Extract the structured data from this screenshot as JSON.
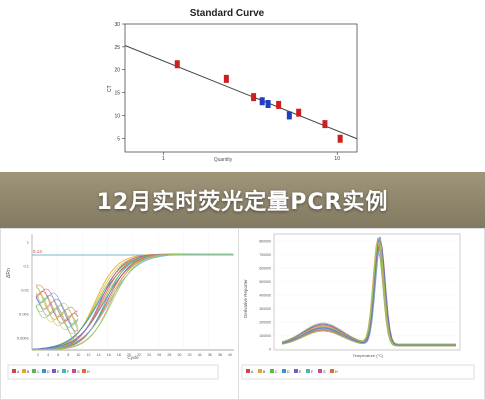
{
  "banner": {
    "title": "12月实时荧光定量PCR实例"
  },
  "colors": {
    "banner_bg": "#8a7f5f",
    "regression_line": "#444444",
    "red_marker": "#cc1f1f",
    "blue_marker": "#1f3fbf",
    "threshold_line": "#4aa3b8"
  },
  "chart_data": [
    {
      "type": "scatter",
      "title": "Standard Curve",
      "xlabel": "Quantity",
      "ylabel": "CT",
      "xscale": "log",
      "xlim": [
        0.6,
        13
      ],
      "ylim": [
        2,
        30
      ],
      "yticks": [
        "5",
        "10",
        "15",
        "20",
        "25",
        "30"
      ],
      "xticks": [
        "1",
        "10"
      ],
      "grid": false,
      "regression": {
        "x": [
          0.6,
          13
        ],
        "y": [
          25.3,
          4.9
        ]
      },
      "series": [
        {
          "color": "red",
          "x": [
            1.2,
            2.3,
            3.3,
            4.6,
            6.0,
            8.5,
            10.4
          ],
          "y": [
            21.2,
            18.0,
            14.0,
            12.3,
            10.6,
            8.1,
            4.9
          ]
        },
        {
          "color": "blue",
          "x": [
            3.7,
            4.0,
            5.3
          ],
          "y": [
            13.1,
            12.5,
            10.0
          ]
        }
      ]
    },
    {
      "type": "line",
      "title": "",
      "xlabel": "Cycle",
      "ylabel": "ΔRn",
      "threshold_label": "0.13",
      "yticks": [
        "1",
        "0.1",
        "0.01",
        "0.001",
        "0.0001"
      ],
      "xticks": [
        "2",
        "4",
        "6",
        "8",
        "10",
        "12",
        "14",
        "16",
        "18",
        "20",
        "22",
        "24",
        "26",
        "28",
        "30",
        "32",
        "34",
        "36",
        "38",
        "40"
      ],
      "curve_count": 14,
      "legend": [
        "A",
        "B",
        "C",
        "D",
        "E",
        "F",
        "G",
        "H"
      ]
    },
    {
      "type": "line",
      "title": "",
      "xlabel": "Temperature (°C)",
      "ylabel": "Derivative Reporter",
      "yticks": [
        "800000",
        "700000",
        "600000",
        "500000",
        "400000",
        "300000",
        "200000",
        "100000",
        "0"
      ],
      "peak_temperature": 83,
      "curve_count": 14,
      "legend": [
        "A",
        "B",
        "C",
        "D",
        "E",
        "F",
        "G",
        "H"
      ]
    }
  ]
}
